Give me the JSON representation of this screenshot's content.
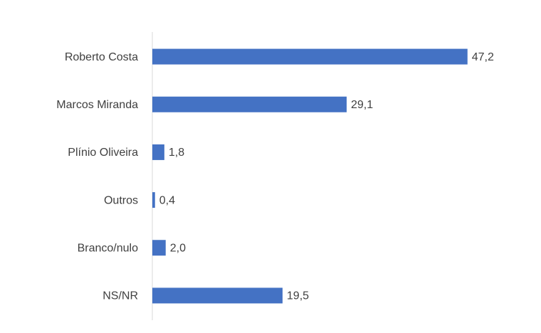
{
  "chart_data": {
    "type": "hbar",
    "categories": [
      "Roberto Costa",
      "Marcos Miranda",
      "Plínio Oliveira",
      "Outros",
      "Branco/nulo",
      "NS/NR"
    ],
    "values": [
      47.2,
      29.1,
      1.8,
      0.4,
      2.0,
      19.5
    ],
    "value_labels": [
      "47,2",
      "29,1",
      "1,8",
      "0,4",
      "2,0",
      "19,5"
    ],
    "color": "#4472c4",
    "xlim": [
      0,
      50
    ]
  }
}
